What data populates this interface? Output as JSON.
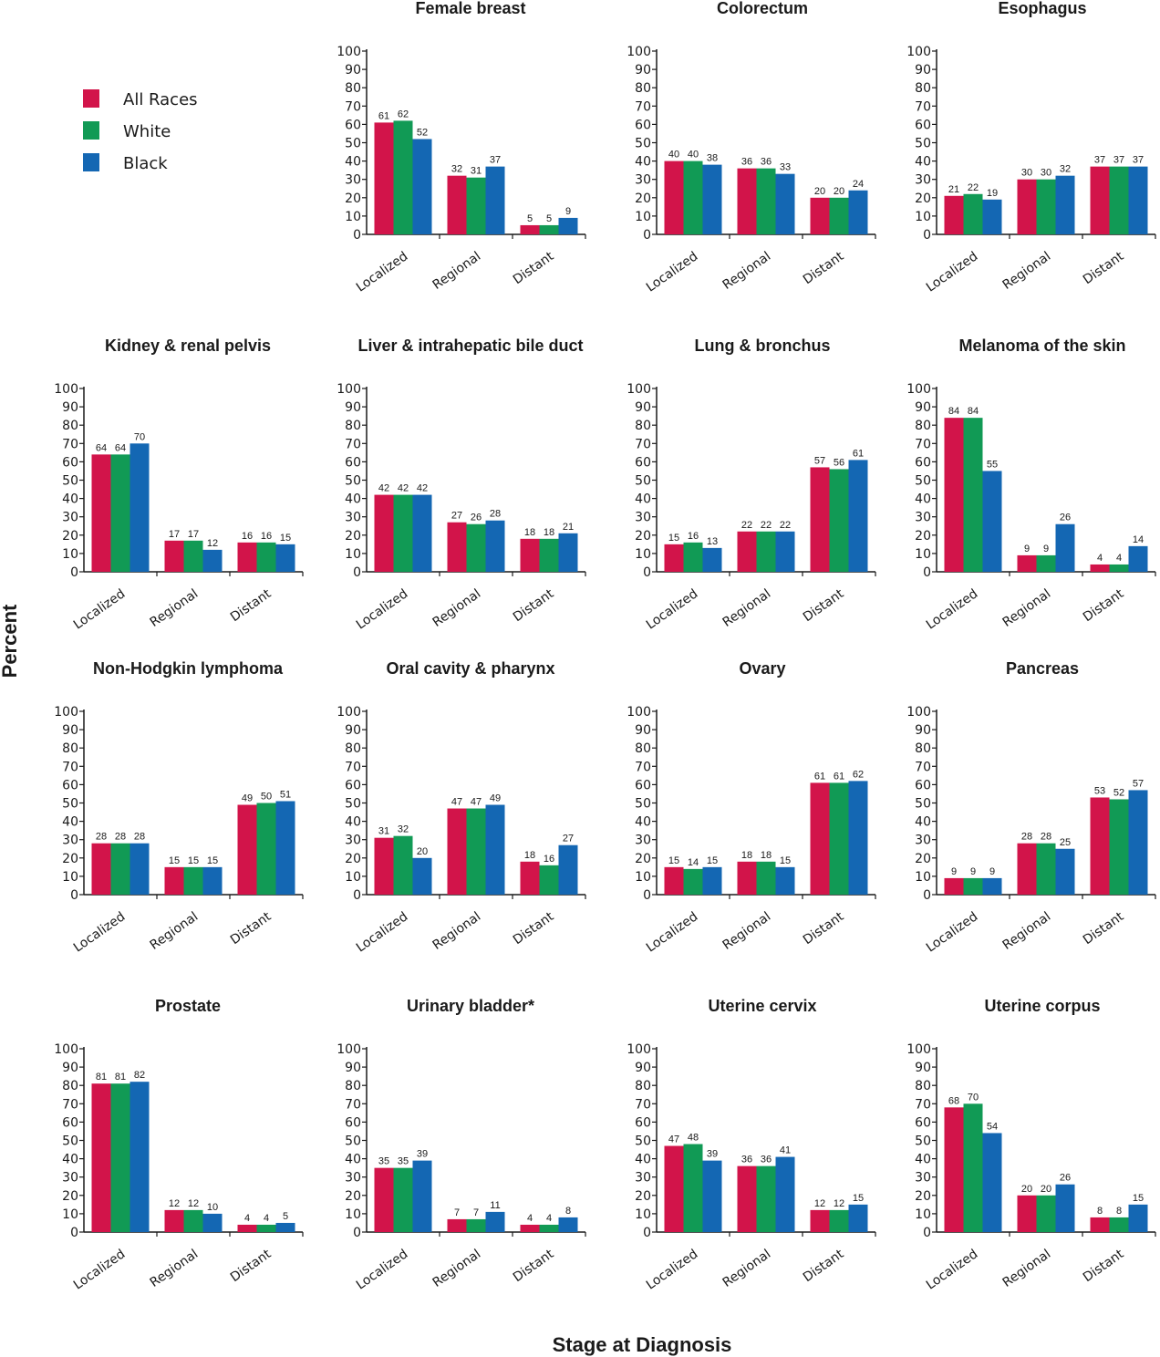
{
  "figure": {
    "xlabel": "Stage at Diagnosis",
    "ylabel": "Percent",
    "legend": [
      {
        "name": "All Races",
        "color": "#d2144a"
      },
      {
        "name": "White",
        "color": "#119a55"
      },
      {
        "name": "Black",
        "color": "#1467b3"
      }
    ]
  },
  "chart_data": [
    {
      "type": "bar",
      "title": "Female breast",
      "categories": [
        "Localized",
        "Regional",
        "Distant"
      ],
      "ylim": [
        0,
        100
      ],
      "yticks": [
        0,
        10,
        20,
        30,
        40,
        50,
        60,
        70,
        80,
        90,
        100
      ],
      "series": [
        {
          "name": "All Races",
          "values": [
            61,
            32,
            5
          ]
        },
        {
          "name": "White",
          "values": [
            62,
            31,
            5
          ]
        },
        {
          "name": "Black",
          "values": [
            52,
            37,
            9
          ]
        }
      ]
    },
    {
      "type": "bar",
      "title": "Colorectum",
      "categories": [
        "Localized",
        "Regional",
        "Distant"
      ],
      "ylim": [
        0,
        100
      ],
      "yticks": [
        0,
        10,
        20,
        30,
        40,
        50,
        60,
        70,
        80,
        90,
        100
      ],
      "series": [
        {
          "name": "All Races",
          "values": [
            40,
            36,
            20
          ]
        },
        {
          "name": "White",
          "values": [
            40,
            36,
            20
          ]
        },
        {
          "name": "Black",
          "values": [
            38,
            33,
            24
          ]
        }
      ]
    },
    {
      "type": "bar",
      "title": "Esophagus",
      "categories": [
        "Localized",
        "Regional",
        "Distant"
      ],
      "ylim": [
        0,
        100
      ],
      "yticks": [
        0,
        10,
        20,
        30,
        40,
        50,
        60,
        70,
        80,
        90,
        100
      ],
      "series": [
        {
          "name": "All Races",
          "values": [
            21,
            30,
            37
          ]
        },
        {
          "name": "White",
          "values": [
            22,
            30,
            37
          ]
        },
        {
          "name": "Black",
          "values": [
            19,
            32,
            37
          ]
        }
      ]
    },
    {
      "type": "bar",
      "title": "Kidney & renal pelvis",
      "categories": [
        "Localized",
        "Regional",
        "Distant"
      ],
      "ylim": [
        0,
        100
      ],
      "yticks": [
        0,
        10,
        20,
        30,
        40,
        50,
        60,
        70,
        80,
        90,
        100
      ],
      "series": [
        {
          "name": "All Races",
          "values": [
            64,
            17,
            16
          ]
        },
        {
          "name": "White",
          "values": [
            64,
            17,
            16
          ]
        },
        {
          "name": "Black",
          "values": [
            70,
            12,
            15
          ]
        }
      ]
    },
    {
      "type": "bar",
      "title": "Liver & intrahepatic bile duct",
      "categories": [
        "Localized",
        "Regional",
        "Distant"
      ],
      "ylim": [
        0,
        100
      ],
      "yticks": [
        0,
        10,
        20,
        30,
        40,
        50,
        60,
        70,
        80,
        90,
        100
      ],
      "series": [
        {
          "name": "All Races",
          "values": [
            42,
            27,
            18
          ]
        },
        {
          "name": "White",
          "values": [
            42,
            26,
            18
          ]
        },
        {
          "name": "Black",
          "values": [
            42,
            28,
            21
          ]
        }
      ]
    },
    {
      "type": "bar",
      "title": "Lung & bronchus",
      "categories": [
        "Localized",
        "Regional",
        "Distant"
      ],
      "ylim": [
        0,
        100
      ],
      "yticks": [
        0,
        10,
        20,
        30,
        40,
        50,
        60,
        70,
        80,
        90,
        100
      ],
      "series": [
        {
          "name": "All Races",
          "values": [
            15,
            22,
            57
          ]
        },
        {
          "name": "White",
          "values": [
            16,
            22,
            56
          ]
        },
        {
          "name": "Black",
          "values": [
            13,
            22,
            61
          ]
        }
      ]
    },
    {
      "type": "bar",
      "title": "Melanoma of the skin",
      "categories": [
        "Localized",
        "Regional",
        "Distant"
      ],
      "ylim": [
        0,
        100
      ],
      "yticks": [
        0,
        10,
        20,
        30,
        40,
        50,
        60,
        70,
        80,
        90,
        100
      ],
      "series": [
        {
          "name": "All Races",
          "values": [
            84,
            9,
            4
          ]
        },
        {
          "name": "White",
          "values": [
            84,
            9,
            4
          ]
        },
        {
          "name": "Black",
          "values": [
            55,
            26,
            14
          ]
        }
      ]
    },
    {
      "type": "bar",
      "title": "Non-Hodgkin lymphoma",
      "categories": [
        "Localized",
        "Regional",
        "Distant"
      ],
      "ylim": [
        0,
        100
      ],
      "yticks": [
        0,
        10,
        20,
        30,
        40,
        50,
        60,
        70,
        80,
        90,
        100
      ],
      "series": [
        {
          "name": "All Races",
          "values": [
            28,
            15,
            49
          ]
        },
        {
          "name": "White",
          "values": [
            28,
            15,
            50
          ]
        },
        {
          "name": "Black",
          "values": [
            28,
            15,
            51
          ]
        }
      ]
    },
    {
      "type": "bar",
      "title": "Oral cavity & pharynx",
      "categories": [
        "Localized",
        "Regional",
        "Distant"
      ],
      "ylim": [
        0,
        100
      ],
      "yticks": [
        0,
        10,
        20,
        30,
        40,
        50,
        60,
        70,
        80,
        90,
        100
      ],
      "series": [
        {
          "name": "All Races",
          "values": [
            31,
            47,
            18
          ]
        },
        {
          "name": "White",
          "values": [
            32,
            47,
            16
          ]
        },
        {
          "name": "Black",
          "values": [
            20,
            49,
            27
          ]
        }
      ]
    },
    {
      "type": "bar",
      "title": "Ovary",
      "categories": [
        "Localized",
        "Regional",
        "Distant"
      ],
      "ylim": [
        0,
        100
      ],
      "yticks": [
        0,
        10,
        20,
        30,
        40,
        50,
        60,
        70,
        80,
        90,
        100
      ],
      "series": [
        {
          "name": "All Races",
          "values": [
            15,
            18,
            61
          ]
        },
        {
          "name": "White",
          "values": [
            14,
            18,
            61
          ]
        },
        {
          "name": "Black",
          "values": [
            15,
            15,
            62
          ]
        }
      ]
    },
    {
      "type": "bar",
      "title": "Pancreas",
      "categories": [
        "Localized",
        "Regional",
        "Distant"
      ],
      "ylim": [
        0,
        100
      ],
      "yticks": [
        0,
        10,
        20,
        30,
        40,
        50,
        60,
        70,
        80,
        90,
        100
      ],
      "series": [
        {
          "name": "All Races",
          "values": [
            9,
            28,
            53
          ]
        },
        {
          "name": "White",
          "values": [
            9,
            28,
            52
          ]
        },
        {
          "name": "Black",
          "values": [
            9,
            25,
            57
          ]
        }
      ]
    },
    {
      "type": "bar",
      "title": "Prostate",
      "categories": [
        "Localized",
        "Regional",
        "Distant"
      ],
      "ylim": [
        0,
        100
      ],
      "yticks": [
        0,
        10,
        20,
        30,
        40,
        50,
        60,
        70,
        80,
        90,
        100
      ],
      "series": [
        {
          "name": "All Races",
          "values": [
            81,
            12,
            4
          ]
        },
        {
          "name": "White",
          "values": [
            81,
            12,
            4
          ]
        },
        {
          "name": "Black",
          "values": [
            82,
            10,
            5
          ]
        }
      ]
    },
    {
      "type": "bar",
      "title": "Urinary bladder*",
      "categories": [
        "Localized",
        "Regional",
        "Distant"
      ],
      "ylim": [
        0,
        100
      ],
      "yticks": [
        0,
        10,
        20,
        30,
        40,
        50,
        60,
        70,
        80,
        90,
        100
      ],
      "series": [
        {
          "name": "All Races",
          "values": [
            35,
            7,
            4
          ]
        },
        {
          "name": "White",
          "values": [
            35,
            7,
            4
          ]
        },
        {
          "name": "Black",
          "values": [
            39,
            11,
            8
          ]
        }
      ]
    },
    {
      "type": "bar",
      "title": "Uterine cervix",
      "categories": [
        "Localized",
        "Regional",
        "Distant"
      ],
      "ylim": [
        0,
        100
      ],
      "yticks": [
        0,
        10,
        20,
        30,
        40,
        50,
        60,
        70,
        80,
        90,
        100
      ],
      "series": [
        {
          "name": "All Races",
          "values": [
            47,
            36,
            12
          ]
        },
        {
          "name": "White",
          "values": [
            48,
            36,
            12
          ]
        },
        {
          "name": "Black",
          "values": [
            39,
            41,
            15
          ]
        }
      ]
    },
    {
      "type": "bar",
      "title": "Uterine corpus",
      "categories": [
        "Localized",
        "Regional",
        "Distant"
      ],
      "ylim": [
        0,
        100
      ],
      "yticks": [
        0,
        10,
        20,
        30,
        40,
        50,
        60,
        70,
        80,
        90,
        100
      ],
      "series": [
        {
          "name": "All Races",
          "values": [
            68,
            20,
            8
          ]
        },
        {
          "name": "White",
          "values": [
            70,
            20,
            8
          ]
        },
        {
          "name": "Black",
          "values": [
            54,
            26,
            15
          ]
        }
      ]
    }
  ]
}
